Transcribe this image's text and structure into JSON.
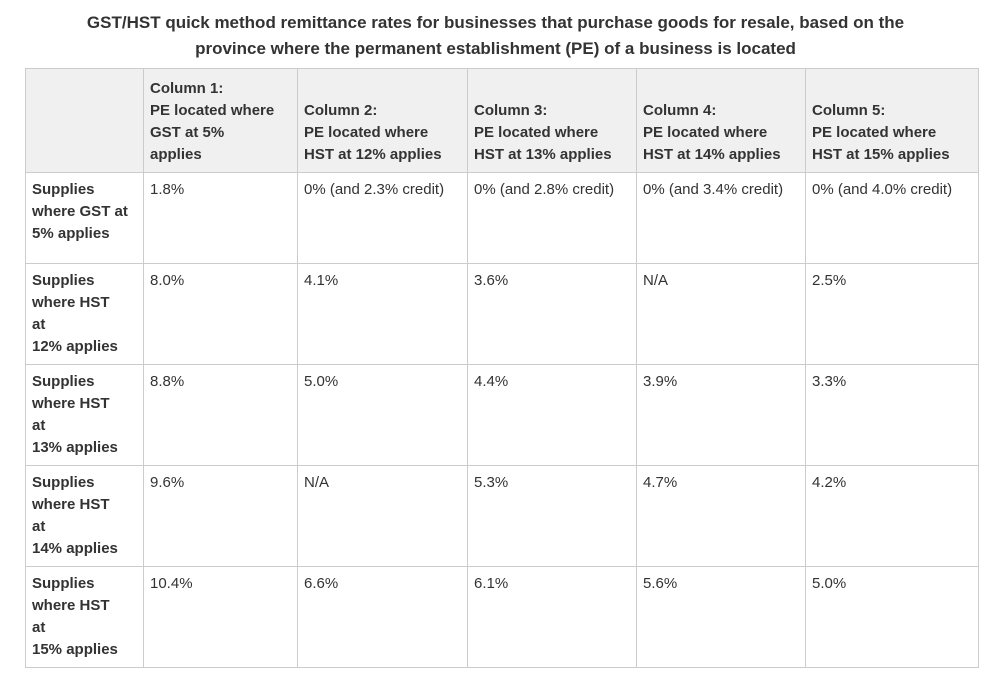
{
  "colors": {
    "header_bg": "#f0f0f0",
    "border": "#cccccc",
    "text": "#333333"
  },
  "page": {
    "title": "GST/HST quick method remittance rates for businesses that purchase goods for resale, based on the\nprovince where the permanent establishment (PE) of a business is located"
  },
  "table": {
    "corner_label": "",
    "column_headers": [
      "Column 1:\nPE located where\nGST at 5%\napplies",
      "Column 2:\nPE located where\nHST at 12% applies",
      "Column 3:\nPE located where\nHST at 13% applies",
      "Column 4:\nPE located where\nHST at 14% applies",
      "Column 5:\nPE located where\nHST at 15% applies"
    ],
    "rows": [
      {
        "label": "Supplies\nwhere GST at\n5% applies",
        "values": [
          "1.8%",
          "0% (and 2.3% credit)",
          "0% (and 2.8% credit)",
          "0% (and 3.4% credit)",
          "0% (and 4.0% credit)"
        ]
      },
      {
        "label": "Supplies\nwhere HST\nat\n12% applies",
        "values": [
          "8.0%",
          "4.1%",
          "3.6%",
          "N/A",
          "2.5%"
        ]
      },
      {
        "label": "Supplies\nwhere HST\nat\n13% applies",
        "values": [
          "8.8%",
          "5.0%",
          "4.4%",
          "3.9%",
          "3.3%"
        ]
      },
      {
        "label": "Supplies\nwhere HST\nat\n14% applies",
        "values": [
          "9.6%",
          "N/A",
          "5.3%",
          "4.7%",
          "4.2%"
        ]
      },
      {
        "label": "Supplies\nwhere HST\nat\n15% applies",
        "values": [
          "10.4%",
          "6.6%",
          "6.1%",
          "5.6%",
          "5.0%"
        ]
      }
    ]
  }
}
